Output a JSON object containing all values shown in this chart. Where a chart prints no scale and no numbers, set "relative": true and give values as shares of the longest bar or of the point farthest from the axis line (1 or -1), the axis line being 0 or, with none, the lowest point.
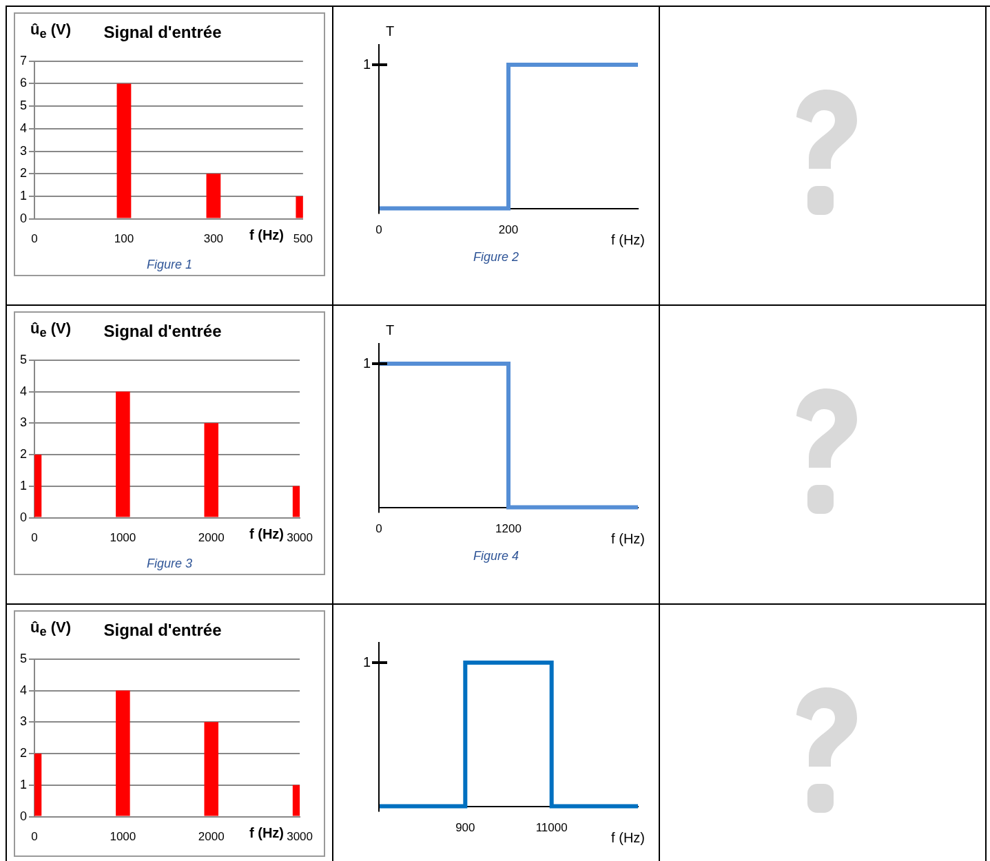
{
  "chart_data": [
    {
      "type": "bar",
      "title": "Signal d'entrée",
      "xlabel": "f (Hz)",
      "ylabel": "û$_{e}$ (V)",
      "annotations": [
        "Figure 1"
      ],
      "categories": [
        "0",
        "100",
        "300",
        "500"
      ],
      "values": [
        null,
        6,
        2,
        1
      ],
      "color": "#ff0000",
      "ylim": [
        0,
        7
      ],
      "yticks": [
        0,
        1,
        2,
        3,
        4,
        5,
        6,
        7
      ],
      "grid": "y"
    },
    {
      "type": "step",
      "xlabel": "f (Hz)",
      "ylabel": "T",
      "annotations": [
        "1",
        "Figure 2"
      ],
      "categories": [
        "0",
        null,
        "200",
        null,
        null
      ],
      "values": [
        0,
        0,
        1,
        1,
        1
      ],
      "color": "#558ed5",
      "relative": true,
      "marker": "none"
    },
    {
      "type": "bar",
      "title": "Signal d'entrée",
      "xlabel": "f (Hz)",
      "ylabel": "û$_{e}$ (V)",
      "annotations": [
        "Figure 3"
      ],
      "categories": [
        "0",
        "1000",
        "2000",
        "3000"
      ],
      "values": [
        2,
        4,
        3,
        1
      ],
      "color": "#ff0000",
      "ylim": [
        0,
        5
      ],
      "yticks": [
        0,
        1,
        2,
        3,
        4,
        5
      ],
      "grid": "y"
    },
    {
      "type": "step",
      "xlabel": "f (Hz)",
      "ylabel": "T",
      "annotations": [
        "1",
        "Figure 4"
      ],
      "categories": [
        "0",
        null,
        "1200",
        null,
        null
      ],
      "values": [
        1,
        1,
        0,
        0,
        0
      ],
      "color": "#558ed5",
      "relative": true,
      "marker": "none"
    },
    {
      "type": "bar",
      "title": "Signal d'entrée",
      "xlabel": "f (Hz)",
      "ylabel": "û$_{e}$ (V)",
      "categories": [
        "0",
        "1000",
        "2000",
        "3000"
      ],
      "values": [
        2,
        4,
        3,
        1
      ],
      "color": "#ff0000",
      "ylim": [
        0,
        5
      ],
      "yticks": [
        0,
        1,
        2,
        3,
        4,
        5
      ],
      "grid": "y"
    },
    {
      "type": "step",
      "xlabel": "f (Hz)",
      "annotations": [
        "1"
      ],
      "categories": [
        null,
        "900",
        "11000",
        null
      ],
      "values": [
        0,
        1,
        0,
        0
      ],
      "color": "#0070c0",
      "relative": true,
      "marker": "none"
    }
  ]
}
